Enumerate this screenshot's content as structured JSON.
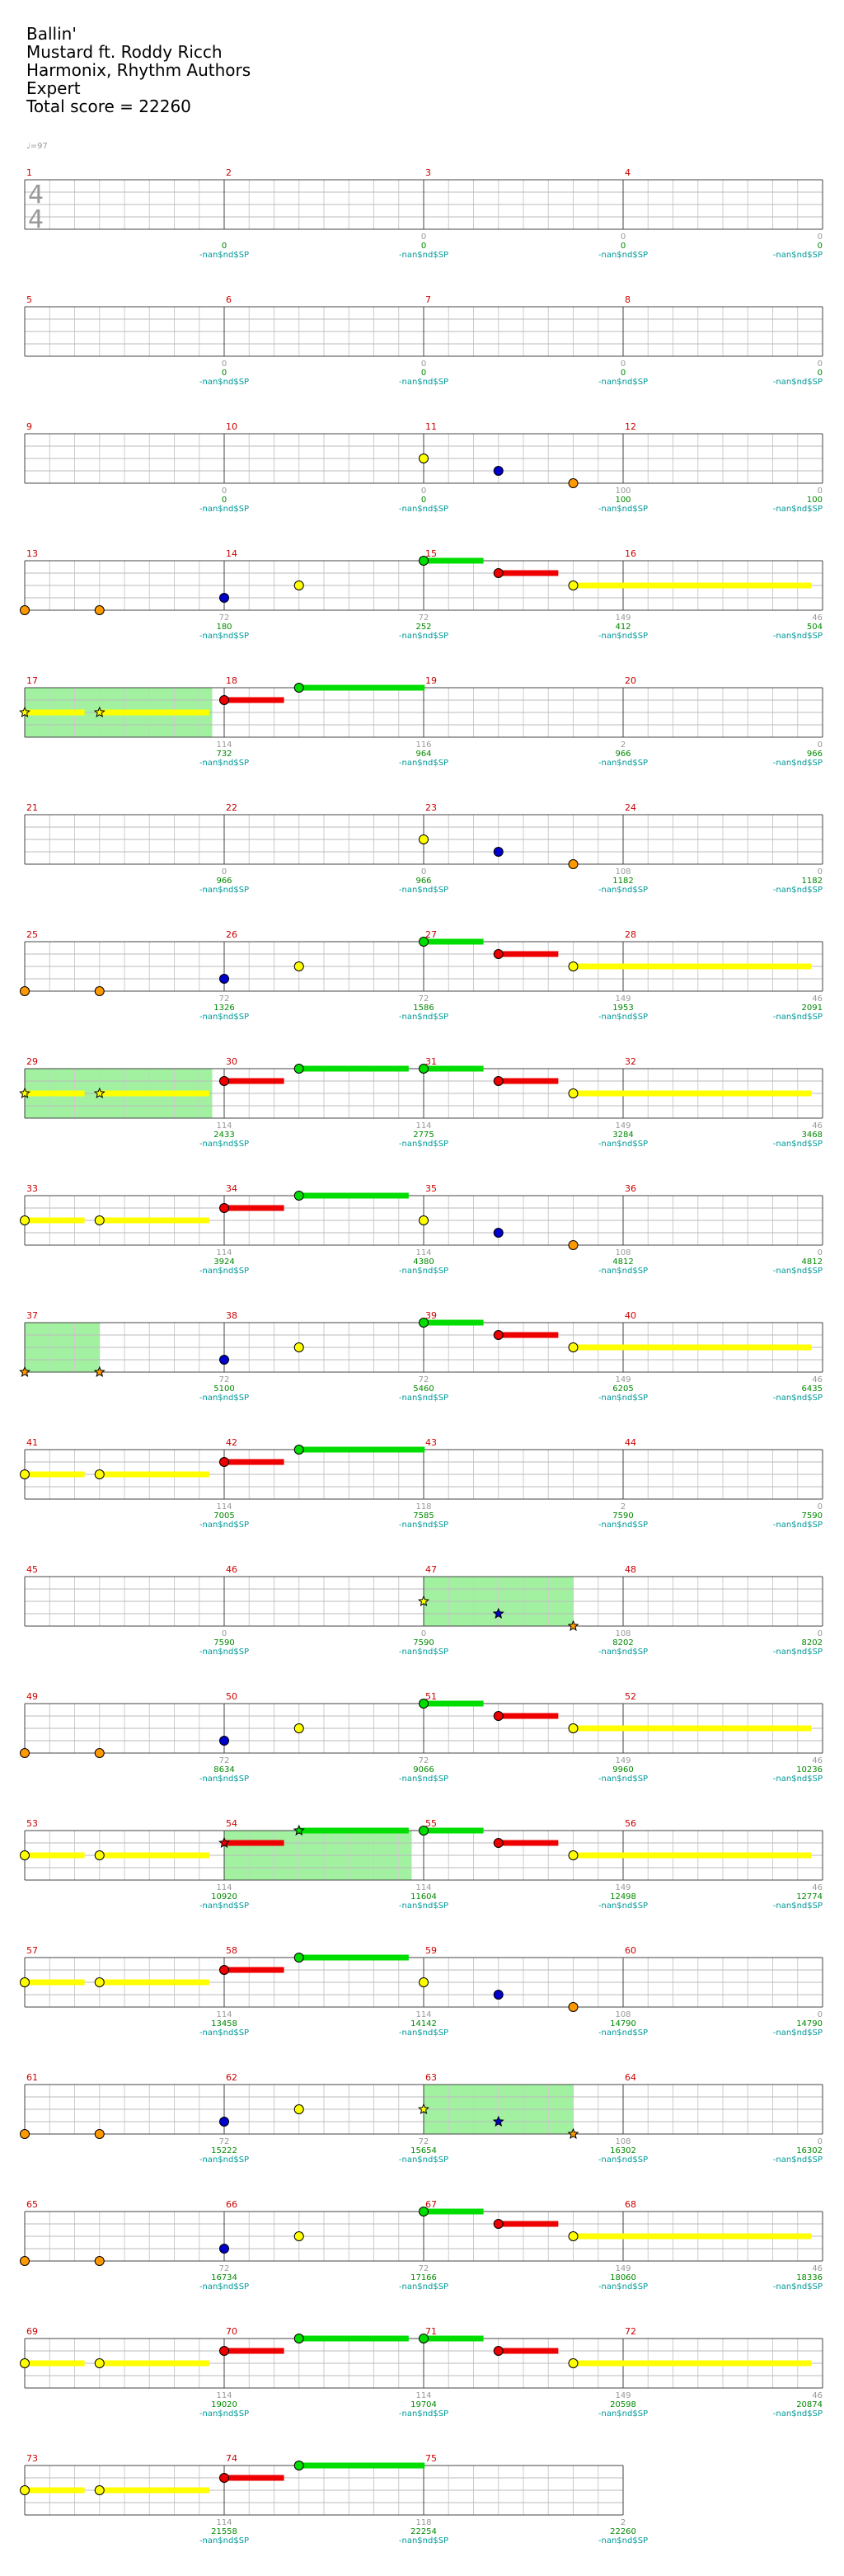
{
  "header": {
    "title": "Ballin'",
    "artist": "Mustard ft. Roddy Ricch",
    "charter": "Harmonix, Rhythm Authors",
    "difficulty": "Expert",
    "total_score": "Total score = 22260"
  },
  "tempo": "♩=97",
  "time_signature": {
    "top": "4",
    "bottom": "4"
  },
  "colors": {
    "green": "#00dd00",
    "red": "#ee0000",
    "yellow": "#ffff00",
    "blue": "#0000cc",
    "orange": "#ff9900",
    "overdrive": "#90ee90",
    "measure_number": "#cc0000",
    "score": "#008800",
    "tag": "#009999"
  },
  "measures_per_row": 4,
  "measure_count": 75,
  "tag_text": "-nan$nd$SP",
  "rows": [
    {
      "first": 1,
      "gray": [
        "",
        "0",
        "0",
        "0"
      ],
      "scores": [
        "0",
        "0",
        "0",
        "0"
      ]
    },
    {
      "first": 5,
      "gray": [
        "0",
        "0",
        "0",
        "0"
      ],
      "scores": [
        "0",
        "0",
        "0",
        "0"
      ]
    },
    {
      "first": 9,
      "gray": [
        "0",
        "0",
        "100",
        "0"
      ],
      "scores": [
        "0",
        "0",
        "100",
        "100"
      ]
    },
    {
      "first": 13,
      "gray": [
        "72",
        "72",
        "149",
        "46"
      ],
      "scores": [
        "180",
        "252",
        "412",
        "504"
      ]
    },
    {
      "first": 17,
      "gray": [
        "114",
        "116",
        "2",
        "0"
      ],
      "scores": [
        "732",
        "964",
        "966",
        "966"
      ]
    },
    {
      "first": 21,
      "gray": [
        "0",
        "0",
        "108",
        "0"
      ],
      "scores": [
        "966",
        "966",
        "1182",
        "1182"
      ]
    },
    {
      "first": 25,
      "gray": [
        "72",
        "72",
        "149",
        "46"
      ],
      "scores": [
        "1326",
        "1586",
        "1953",
        "2091"
      ]
    },
    {
      "first": 29,
      "gray": [
        "114",
        "114",
        "149",
        "46"
      ],
      "scores": [
        "2433",
        "2775",
        "3284",
        "3468"
      ]
    },
    {
      "first": 33,
      "gray": [
        "114",
        "114",
        "108",
        "0"
      ],
      "scores": [
        "3924",
        "4380",
        "4812",
        "4812"
      ]
    },
    {
      "first": 37,
      "gray": [
        "72",
        "72",
        "149",
        "46"
      ],
      "scores": [
        "5100",
        "5460",
        "6205",
        "6435"
      ]
    },
    {
      "first": 41,
      "gray": [
        "114",
        "118",
        "2",
        "0"
      ],
      "scores": [
        "7005",
        "7585",
        "7590",
        "7590"
      ]
    },
    {
      "first": 45,
      "gray": [
        "0",
        "0",
        "108",
        "0"
      ],
      "scores": [
        "7590",
        "7590",
        "8202",
        "8202"
      ]
    },
    {
      "first": 49,
      "gray": [
        "72",
        "72",
        "149",
        "46"
      ],
      "scores": [
        "8634",
        "9066",
        "9960",
        "10236"
      ]
    },
    {
      "first": 53,
      "gray": [
        "114",
        "114",
        "149",
        "46"
      ],
      "scores": [
        "10920",
        "11604",
        "12498",
        "12774"
      ]
    },
    {
      "first": 57,
      "gray": [
        "114",
        "114",
        "108",
        "0"
      ],
      "scores": [
        "13458",
        "14142",
        "14790",
        "14790"
      ]
    },
    {
      "first": 61,
      "gray": [
        "72",
        "72",
        "108",
        "0"
      ],
      "scores": [
        "15222",
        "15654",
        "16302",
        "16302"
      ]
    },
    {
      "first": 65,
      "gray": [
        "72",
        "72",
        "149",
        "46"
      ],
      "scores": [
        "16734",
        "17166",
        "18060",
        "18336"
      ]
    },
    {
      "first": 69,
      "gray": [
        "114",
        "114",
        "149",
        "46"
      ],
      "scores": [
        "19020",
        "19704",
        "20598",
        "20874"
      ]
    },
    {
      "first": 73,
      "gray": [
        "114",
        "118",
        "2"
      ],
      "scores": [
        "21558",
        "22254",
        "22260"
      ]
    }
  ],
  "measure_notes": {
    "11": [
      {
        "t": 0,
        "c": "yellow"
      },
      {
        "t": 0.375,
        "c": "blue"
      },
      {
        "t": 0.75,
        "c": "orange"
      }
    ],
    "13": [
      {
        "t": 0,
        "c": "orange"
      },
      {
        "t": 0.375,
        "c": "orange"
      }
    ],
    "14": [
      {
        "t": 0,
        "c": "blue"
      },
      {
        "t": 0.375,
        "c": "yellow"
      }
    ],
    "15": [
      {
        "t": 0,
        "c": "green",
        "len": 0.3
      },
      {
        "t": 0.375,
        "c": "red",
        "len": 0.3
      },
      {
        "t": 0.75,
        "c": "yellow",
        "len": 1.2
      }
    ],
    "17": [
      {
        "t": 0,
        "c": "yellow",
        "len": 0.3,
        "star": true
      },
      {
        "t": 0.375,
        "c": "yellow",
        "len": 0.55,
        "star": true
      }
    ],
    "18": [
      {
        "t": 0,
        "c": "red",
        "len": 0.3
      },
      {
        "t": 0.375,
        "c": "green",
        "len": 0.63
      }
    ],
    "23": [
      {
        "t": 0,
        "c": "yellow"
      },
      {
        "t": 0.375,
        "c": "blue"
      },
      {
        "t": 0.75,
        "c": "orange"
      }
    ],
    "25": [
      {
        "t": 0,
        "c": "orange"
      },
      {
        "t": 0.375,
        "c": "orange"
      }
    ],
    "26": [
      {
        "t": 0,
        "c": "blue"
      },
      {
        "t": 0.375,
        "c": "yellow"
      }
    ],
    "27": [
      {
        "t": 0,
        "c": "green",
        "len": 0.3
      },
      {
        "t": 0.375,
        "c": "red",
        "len": 0.3
      },
      {
        "t": 0.75,
        "c": "yellow",
        "len": 1.2
      }
    ],
    "29": [
      {
        "t": 0,
        "c": "yellow",
        "len": 0.3,
        "star": true
      },
      {
        "t": 0.375,
        "c": "yellow",
        "len": 0.55,
        "star": true
      }
    ],
    "30": [
      {
        "t": 0,
        "c": "red",
        "len": 0.3
      },
      {
        "t": 0.375,
        "c": "green",
        "len": 0.55
      }
    ],
    "31": [
      {
        "t": 0,
        "c": "green",
        "len": 0.3
      },
      {
        "t": 0.375,
        "c": "red",
        "len": 0.3
      },
      {
        "t": 0.75,
        "c": "yellow",
        "len": 1.2
      }
    ],
    "33": [
      {
        "t": 0,
        "c": "yellow",
        "len": 0.3
      },
      {
        "t": 0.375,
        "c": "yellow",
        "len": 0.55
      }
    ],
    "34": [
      {
        "t": 0,
        "c": "red",
        "len": 0.3
      },
      {
        "t": 0.375,
        "c": "green",
        "len": 0.55
      }
    ],
    "35": [
      {
        "t": 0,
        "c": "yellow"
      },
      {
        "t": 0.375,
        "c": "blue"
      },
      {
        "t": 0.75,
        "c": "orange"
      }
    ],
    "37": [
      {
        "t": 0,
        "c": "orange",
        "star": true
      },
      {
        "t": 0.375,
        "c": "orange",
        "star": true
      }
    ],
    "38": [
      {
        "t": 0,
        "c": "blue"
      },
      {
        "t": 0.375,
        "c": "yellow"
      }
    ],
    "39": [
      {
        "t": 0,
        "c": "green",
        "len": 0.3
      },
      {
        "t": 0.375,
        "c": "red",
        "len": 0.3
      },
      {
        "t": 0.75,
        "c": "yellow",
        "len": 1.2
      }
    ],
    "41": [
      {
        "t": 0,
        "c": "yellow",
        "len": 0.3
      },
      {
        "t": 0.375,
        "c": "yellow",
        "len": 0.55
      }
    ],
    "42": [
      {
        "t": 0,
        "c": "red",
        "len": 0.3
      },
      {
        "t": 0.375,
        "c": "green",
        "len": 0.63
      }
    ],
    "47": [
      {
        "t": 0,
        "c": "yellow",
        "star": true
      },
      {
        "t": 0.375,
        "c": "blue",
        "star": true
      },
      {
        "t": 0.75,
        "c": "orange",
        "star": true
      }
    ],
    "49": [
      {
        "t": 0,
        "c": "orange"
      },
      {
        "t": 0.375,
        "c": "orange"
      }
    ],
    "50": [
      {
        "t": 0,
        "c": "blue"
      },
      {
        "t": 0.375,
        "c": "yellow"
      }
    ],
    "51": [
      {
        "t": 0,
        "c": "green",
        "len": 0.3
      },
      {
        "t": 0.375,
        "c": "red",
        "len": 0.3
      },
      {
        "t": 0.75,
        "c": "yellow",
        "len": 1.2
      }
    ],
    "53": [
      {
        "t": 0,
        "c": "yellow",
        "len": 0.3
      },
      {
        "t": 0.375,
        "c": "yellow",
        "len": 0.55
      }
    ],
    "54": [
      {
        "t": 0,
        "c": "red",
        "len": 0.3,
        "star": true
      },
      {
        "t": 0.375,
        "c": "green",
        "len": 0.55,
        "star": true
      }
    ],
    "55": [
      {
        "t": 0,
        "c": "green",
        "len": 0.3
      },
      {
        "t": 0.375,
        "c": "red",
        "len": 0.3
      },
      {
        "t": 0.75,
        "c": "yellow",
        "len": 1.2
      }
    ],
    "57": [
      {
        "t": 0,
        "c": "yellow",
        "len": 0.3
      },
      {
        "t": 0.375,
        "c": "yellow",
        "len": 0.55
      }
    ],
    "58": [
      {
        "t": 0,
        "c": "red",
        "len": 0.3
      },
      {
        "t": 0.375,
        "c": "green",
        "len": 0.55
      }
    ],
    "59": [
      {
        "t": 0,
        "c": "yellow"
      },
      {
        "t": 0.375,
        "c": "blue"
      },
      {
        "t": 0.75,
        "c": "orange"
      }
    ],
    "61": [
      {
        "t": 0,
        "c": "orange"
      },
      {
        "t": 0.375,
        "c": "orange"
      }
    ],
    "62": [
      {
        "t": 0,
        "c": "blue"
      },
      {
        "t": 0.375,
        "c": "yellow"
      }
    ],
    "63": [
      {
        "t": 0,
        "c": "yellow",
        "star": true
      },
      {
        "t": 0.375,
        "c": "blue",
        "star": true
      },
      {
        "t": 0.75,
        "c": "orange",
        "star": true
      }
    ],
    "65": [
      {
        "t": 0,
        "c": "orange"
      },
      {
        "t": 0.375,
        "c": "orange"
      }
    ],
    "66": [
      {
        "t": 0,
        "c": "blue"
      },
      {
        "t": 0.375,
        "c": "yellow"
      }
    ],
    "67": [
      {
        "t": 0,
        "c": "green",
        "len": 0.3
      },
      {
        "t": 0.375,
        "c": "red",
        "len": 0.3
      },
      {
        "t": 0.75,
        "c": "yellow",
        "len": 1.2
      }
    ],
    "69": [
      {
        "t": 0,
        "c": "yellow",
        "len": 0.3
      },
      {
        "t": 0.375,
        "c": "yellow",
        "len": 0.55
      }
    ],
    "70": [
      {
        "t": 0,
        "c": "red",
        "len": 0.3
      },
      {
        "t": 0.375,
        "c": "green",
        "len": 0.55
      }
    ],
    "71": [
      {
        "t": 0,
        "c": "green",
        "len": 0.3
      },
      {
        "t": 0.375,
        "c": "red",
        "len": 0.3
      },
      {
        "t": 0.75,
        "c": "yellow",
        "len": 1.2
      }
    ],
    "73": [
      {
        "t": 0,
        "c": "yellow",
        "len": 0.3
      },
      {
        "t": 0.375,
        "c": "yellow",
        "len": 0.55
      }
    ],
    "74": [
      {
        "t": 0,
        "c": "red",
        "len": 0.3
      },
      {
        "t": 0.375,
        "c": "green",
        "len": 0.63
      }
    ]
  },
  "overdrive_phrases": [
    {
      "measure": 17,
      "start": 0,
      "end": 0.94
    },
    {
      "measure": 29,
      "start": 0,
      "end": 0.94
    },
    {
      "measure": 37,
      "start": 0,
      "end": 0.375
    },
    {
      "measure": 47,
      "start": 0,
      "end": 0.75
    },
    {
      "measure": 54,
      "start": 0,
      "end": 0.94
    },
    {
      "measure": 63,
      "start": 0,
      "end": 0.75
    }
  ]
}
